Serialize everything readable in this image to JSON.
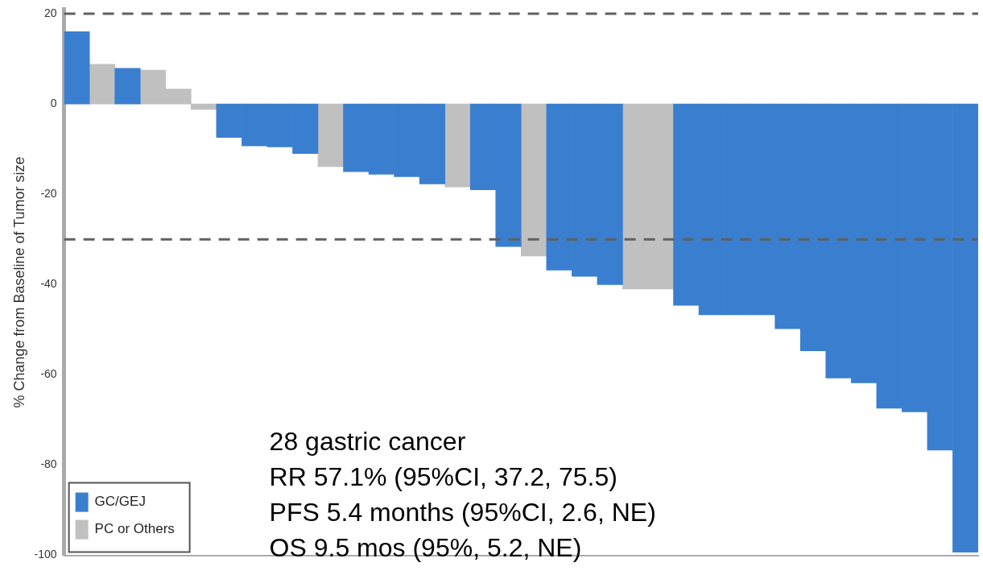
{
  "chart_data": {
    "type": "bar",
    "ylabel": "% Change from Baseline of Tumor size",
    "categories": [
      null,
      null,
      null,
      null,
      null,
      null,
      null,
      null,
      null,
      null,
      null,
      null,
      null,
      null,
      null,
      null,
      null,
      null,
      null,
      null,
      null,
      null,
      null,
      null,
      null,
      null,
      null,
      null,
      null,
      null,
      null,
      null,
      null,
      null,
      null,
      null
    ],
    "series": [
      {
        "name": "GC/GEJ",
        "color": "#3a7fcf",
        "values": [
          16,
          null,
          7.9,
          null,
          null,
          null,
          -7.4,
          -9.3,
          -9.5,
          -11,
          null,
          -15,
          -15.6,
          -16.1,
          -17.7,
          null,
          -19,
          -31.6,
          null,
          -36.8,
          -38.2,
          -40,
          null,
          null,
          -44.6,
          -46.7,
          -46.7,
          -46.7,
          -49.8,
          -54.7,
          -60.7,
          -61.8,
          -67.4,
          -68.2,
          -76.7,
          -99.3
        ]
      },
      {
        "name": "PC or Others",
        "color": "#c0c0c0",
        "values": [
          null,
          8.8,
          null,
          7.5,
          3.3,
          -1.2,
          null,
          null,
          null,
          null,
          -13.9,
          null,
          null,
          null,
          null,
          -18.4,
          null,
          null,
          -33.7,
          null,
          null,
          null,
          -41,
          -41,
          null,
          null,
          null,
          null,
          null,
          null,
          null,
          null,
          null,
          null,
          null,
          null
        ]
      }
    ],
    "ylim": [
      -100,
      21
    ],
    "yticks": [
      20,
      0,
      -20,
      -40,
      -60,
      -80,
      -100
    ],
    "ref_lines": [
      {
        "axis": "y",
        "value": 20,
        "line_style": "dashed",
        "color": "#606060"
      },
      {
        "axis": "y",
        "value": -30,
        "line_style": "dashed",
        "color": "#606060"
      }
    ],
    "annotations": [
      "28 gastric cancer",
      "RR 57.1% (95%CI, 37.2, 75.5)",
      "PFS 5.4 months (95%CI, 2.6, NE)",
      "OS 9.5 mos (95%, 5.2, NE)"
    ],
    "legend": "bottom left",
    "grid": false
  }
}
